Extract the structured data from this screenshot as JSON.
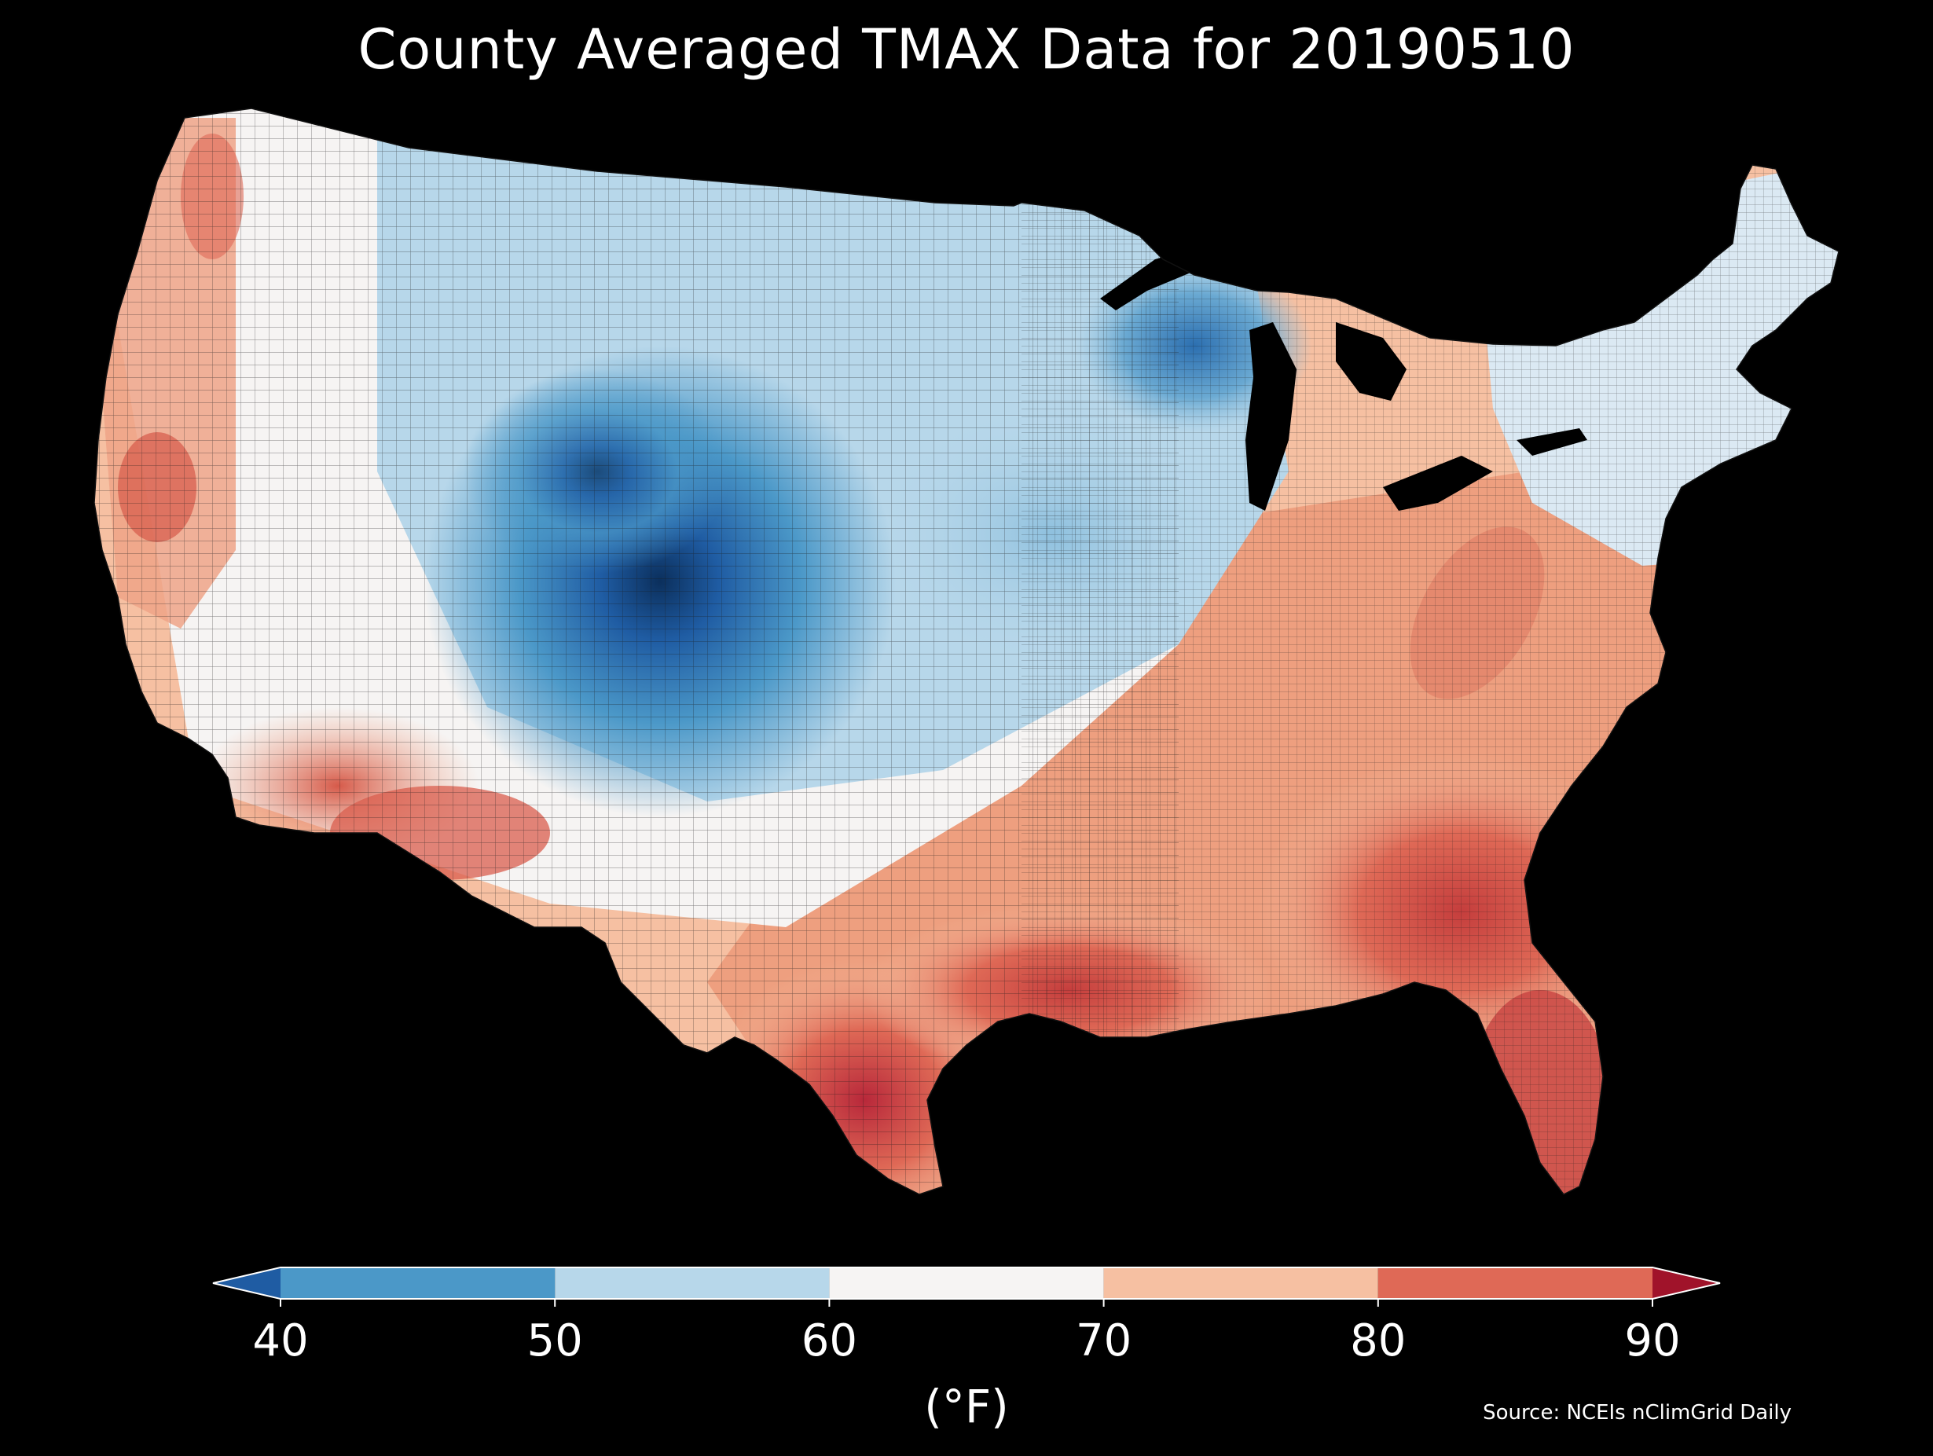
{
  "title": "County Averaged TMAX Data for 20190510",
  "colorbar": {
    "unit": "(°F)",
    "ticks": [
      "40",
      "50",
      "60",
      "70",
      "80",
      "90"
    ],
    "tick_values": [
      40,
      50,
      60,
      70,
      80,
      90
    ],
    "extend": "both",
    "bins": [
      {
        "from": null,
        "to": 40,
        "color": "#1f5ca3"
      },
      {
        "from": 40,
        "to": 50,
        "color": "#4b98c8"
      },
      {
        "from": 50,
        "to": 60,
        "color": "#b7d7ea"
      },
      {
        "from": 60,
        "to": 70,
        "color": "#f6f4f3"
      },
      {
        "from": 70,
        "to": 80,
        "color": "#f6c0a2"
      },
      {
        "from": 80,
        "to": 90,
        "color": "#df6956"
      },
      {
        "from": 90,
        "to": null,
        "color": "#a0132a"
      }
    ]
  },
  "source": "Source: NCEIs nClimGrid Daily",
  "map": {
    "region": "Contiguous United States",
    "variable": "TMAX",
    "background": "#000000",
    "border_color": "#222222"
  }
}
